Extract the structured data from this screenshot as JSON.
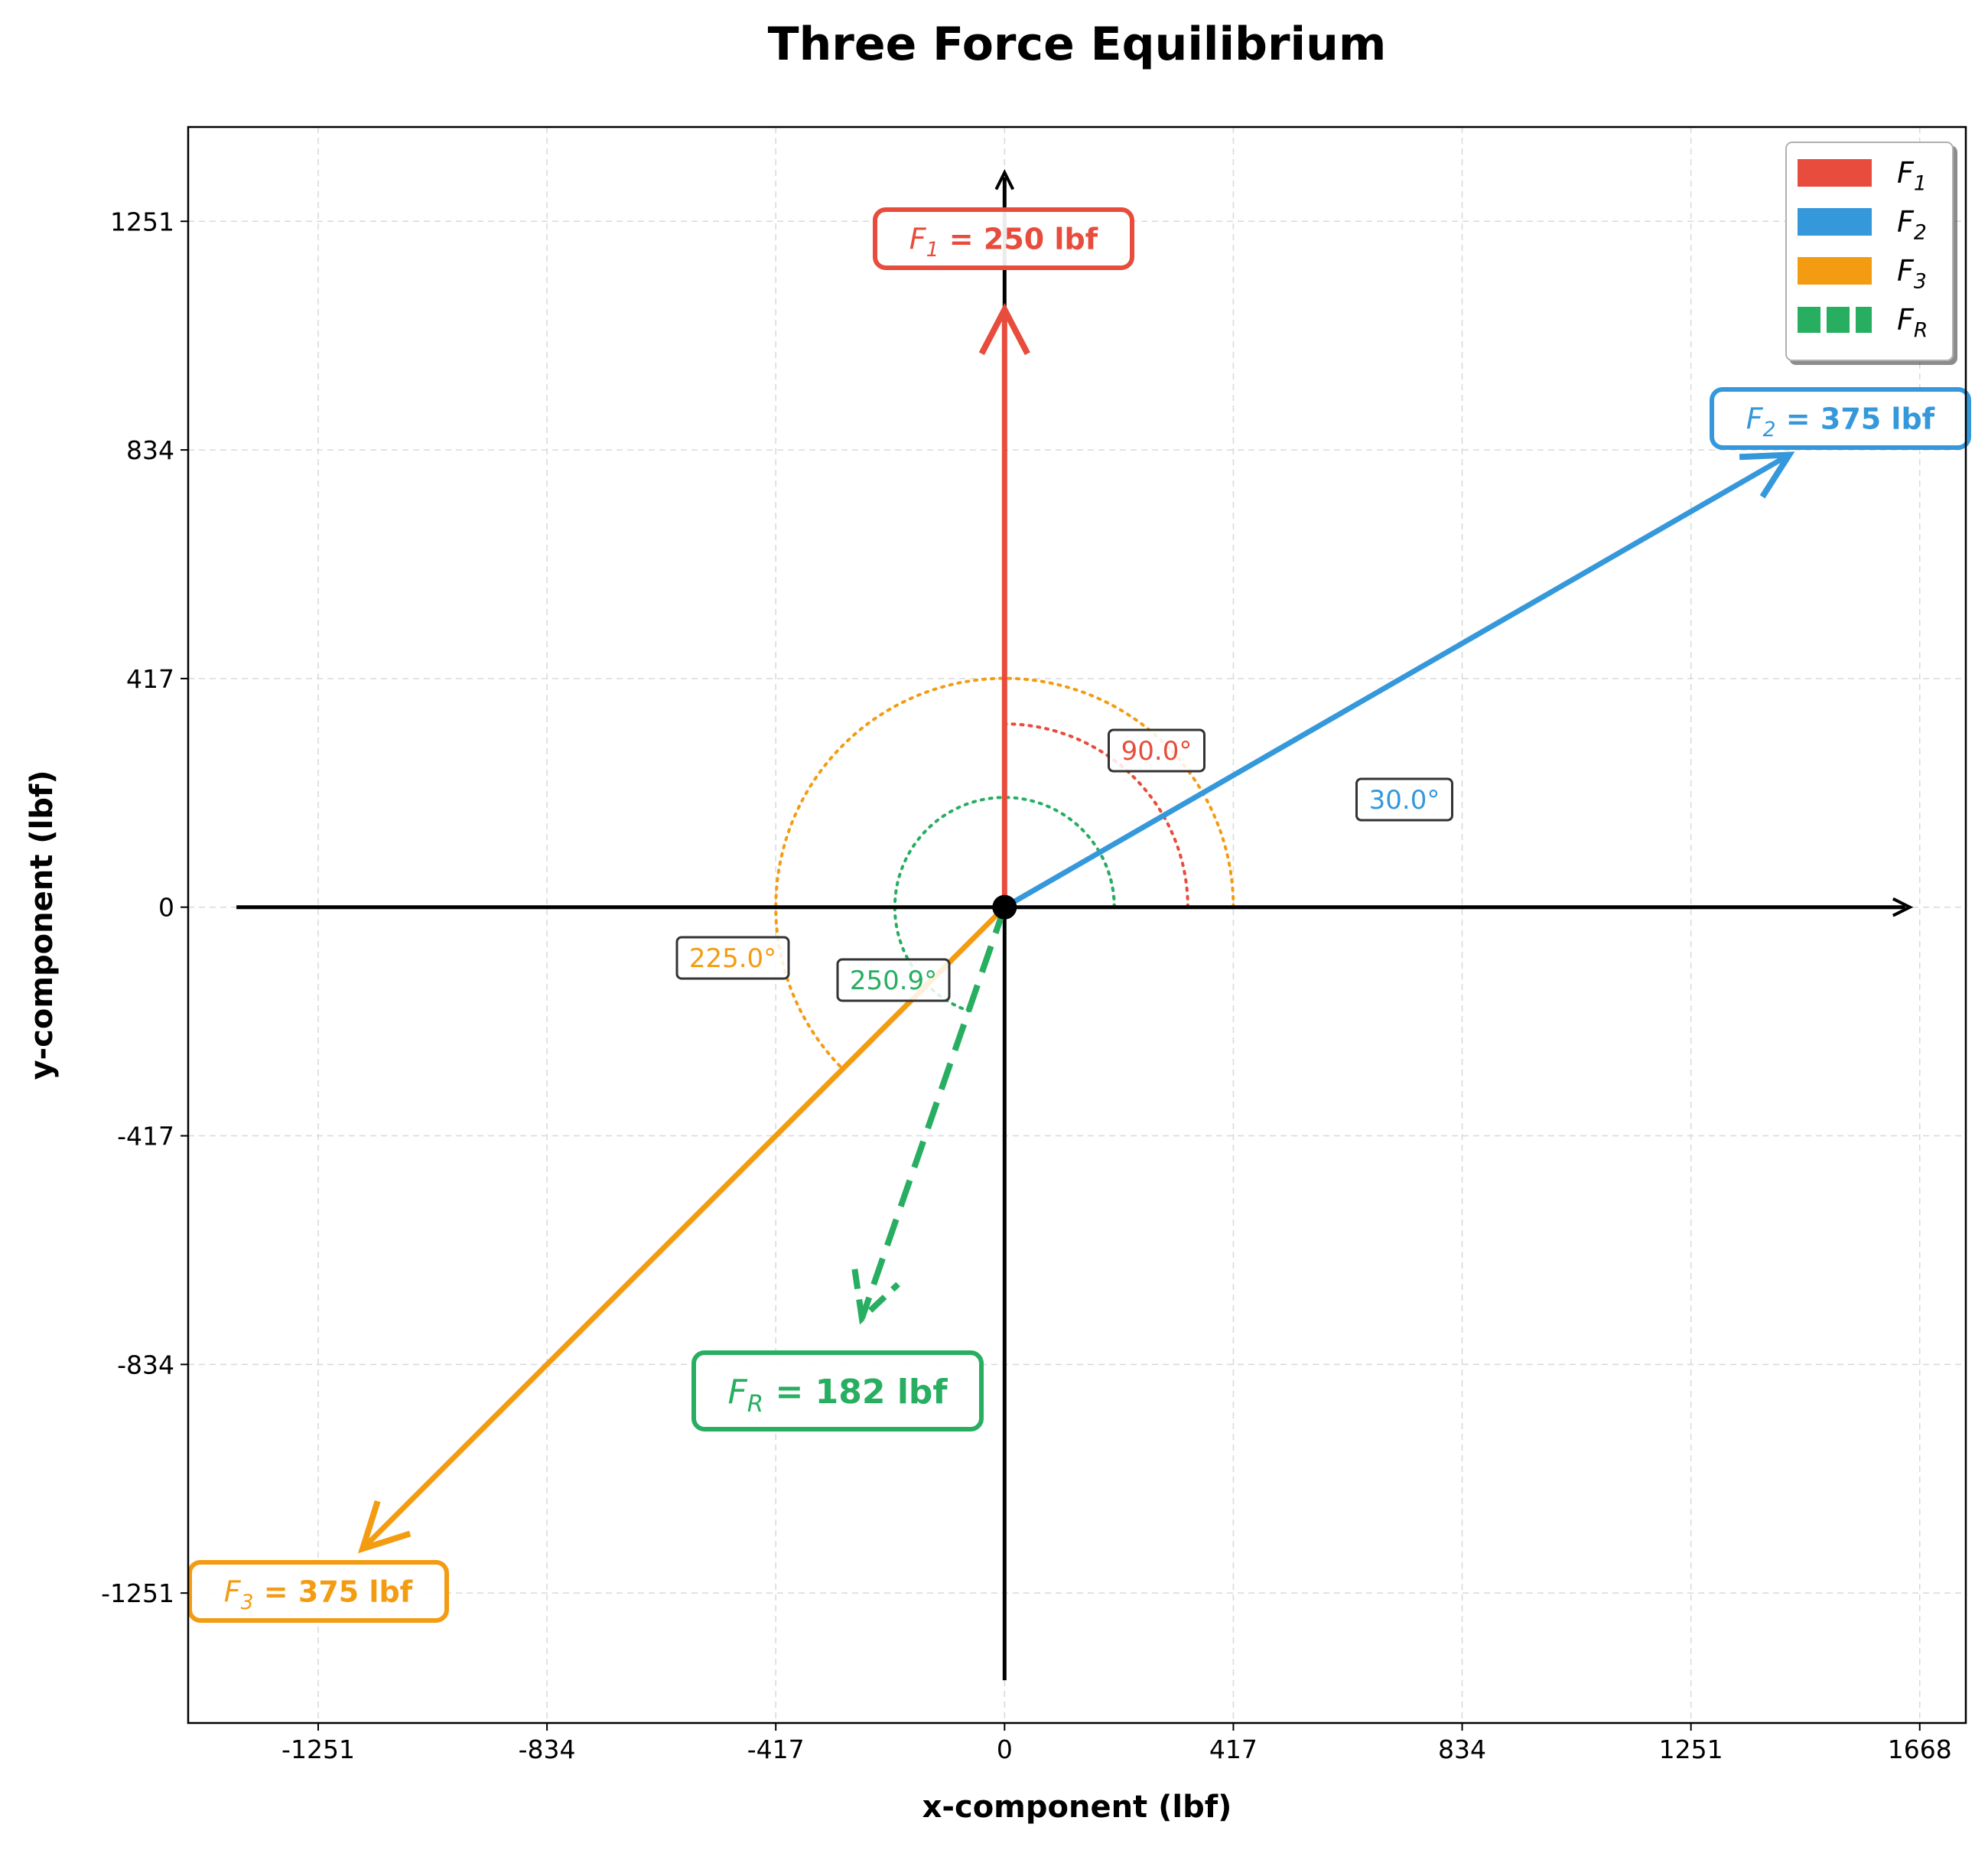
{
  "chart_data": {
    "type": "vector",
    "title": "Three Force Equilibrium",
    "xlabel": "x-component (lbf)",
    "ylabel": "y-component (lbf)",
    "xlim": [
      -1488,
      1752
    ],
    "ylim": [
      -1488,
      1423
    ],
    "xticks": [
      -1251,
      -834,
      -417,
      0,
      417,
      834,
      1251,
      1668
    ],
    "yticks": [
      -1251,
      -834,
      -417,
      0,
      417,
      834,
      1251
    ],
    "grid": true,
    "legend_position": "top-right",
    "vectors": [
      {
        "name": "F",
        "sub": "1",
        "magnitude": 250,
        "angle_deg": 90.0,
        "end": [
          0,
          1090
        ],
        "color": "#e74c3c",
        "label": " = 250 lbf",
        "angle_label": "90.0°",
        "arc_radius": 334,
        "style": "solid"
      },
      {
        "name": "F",
        "sub": "2",
        "magnitude": 375,
        "angle_deg": 30.0,
        "end": [
          1430,
          825
        ],
        "color": "#3498db",
        "label": " = 375 lbf",
        "angle_label": "30.0°",
        "arc_radius": 200,
        "style": "solid"
      },
      {
        "name": "F",
        "sub": "3",
        "magnitude": 375,
        "angle_deg": 225.0,
        "end": [
          -1170,
          -1170
        ],
        "color": "#f39c12",
        "label": " = 375 lbf",
        "angle_label": "225.0°",
        "arc_radius": 417,
        "style": "solid"
      },
      {
        "name": "F",
        "sub": "R",
        "magnitude": 182,
        "angle_deg": 250.9,
        "end": [
          -260,
          -750
        ],
        "color": "#27ae60",
        "label": " = 182 lbf",
        "angle_label": "250.9°",
        "arc_radius": 200,
        "style": "dashed"
      }
    ],
    "axis_lines": {
      "x_from": -1400,
      "x_to": 1650,
      "y_from": -1410,
      "y_to": 1340
    },
    "legend": [
      {
        "name": "F",
        "sub": "1",
        "color": "#e74c3c"
      },
      {
        "name": "F",
        "sub": "2",
        "color": "#3498db"
      },
      {
        "name": "F",
        "sub": "3",
        "color": "#f39c12"
      },
      {
        "name": "F",
        "sub": "R",
        "color": "#27ae60"
      }
    ]
  }
}
